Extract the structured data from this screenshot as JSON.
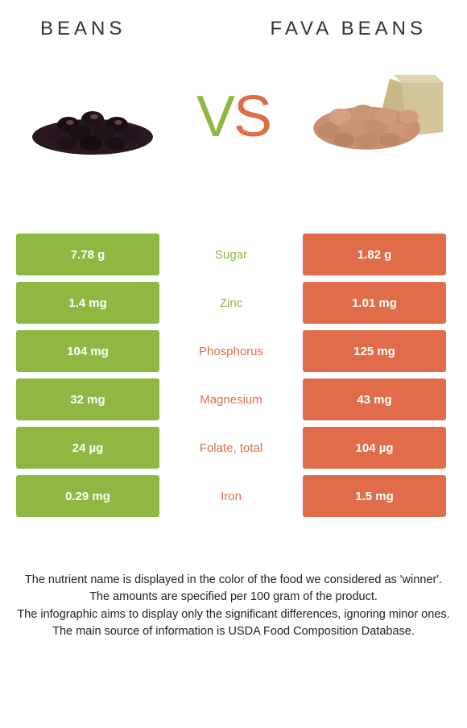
{
  "header": {
    "left_title": "BEANS",
    "right_title": "FAVA BEANS"
  },
  "vs": {
    "v": "V",
    "s": "S"
  },
  "colors": {
    "left": "#8fb843",
    "right": "#e06c4a",
    "background": "#ffffff"
  },
  "nutrients": [
    {
      "name": "Sugar",
      "left": "7.78 g",
      "right": "1.82 g",
      "winner": "left"
    },
    {
      "name": "Zinc",
      "left": "1.4 mg",
      "right": "1.01 mg",
      "winner": "left"
    },
    {
      "name": "Phosphorus",
      "left": "104 mg",
      "right": "125 mg",
      "winner": "right"
    },
    {
      "name": "Magnesium",
      "left": "32 mg",
      "right": "43 mg",
      "winner": "right"
    },
    {
      "name": "Folate, total",
      "left": "24 µg",
      "right": "104 µg",
      "winner": "right"
    },
    {
      "name": "Iron",
      "left": "0.29 mg",
      "right": "1.5 mg",
      "winner": "right"
    }
  ],
  "footer": {
    "line1": "The nutrient name is displayed in the color of the food we considered as 'winner'.",
    "line2": "The amounts are specified per 100 gram of the product.",
    "line3": "The infographic aims to display only the significant differences, ignoring minor ones.",
    "line4": "The main source of information is USDA Food Composition Database."
  }
}
